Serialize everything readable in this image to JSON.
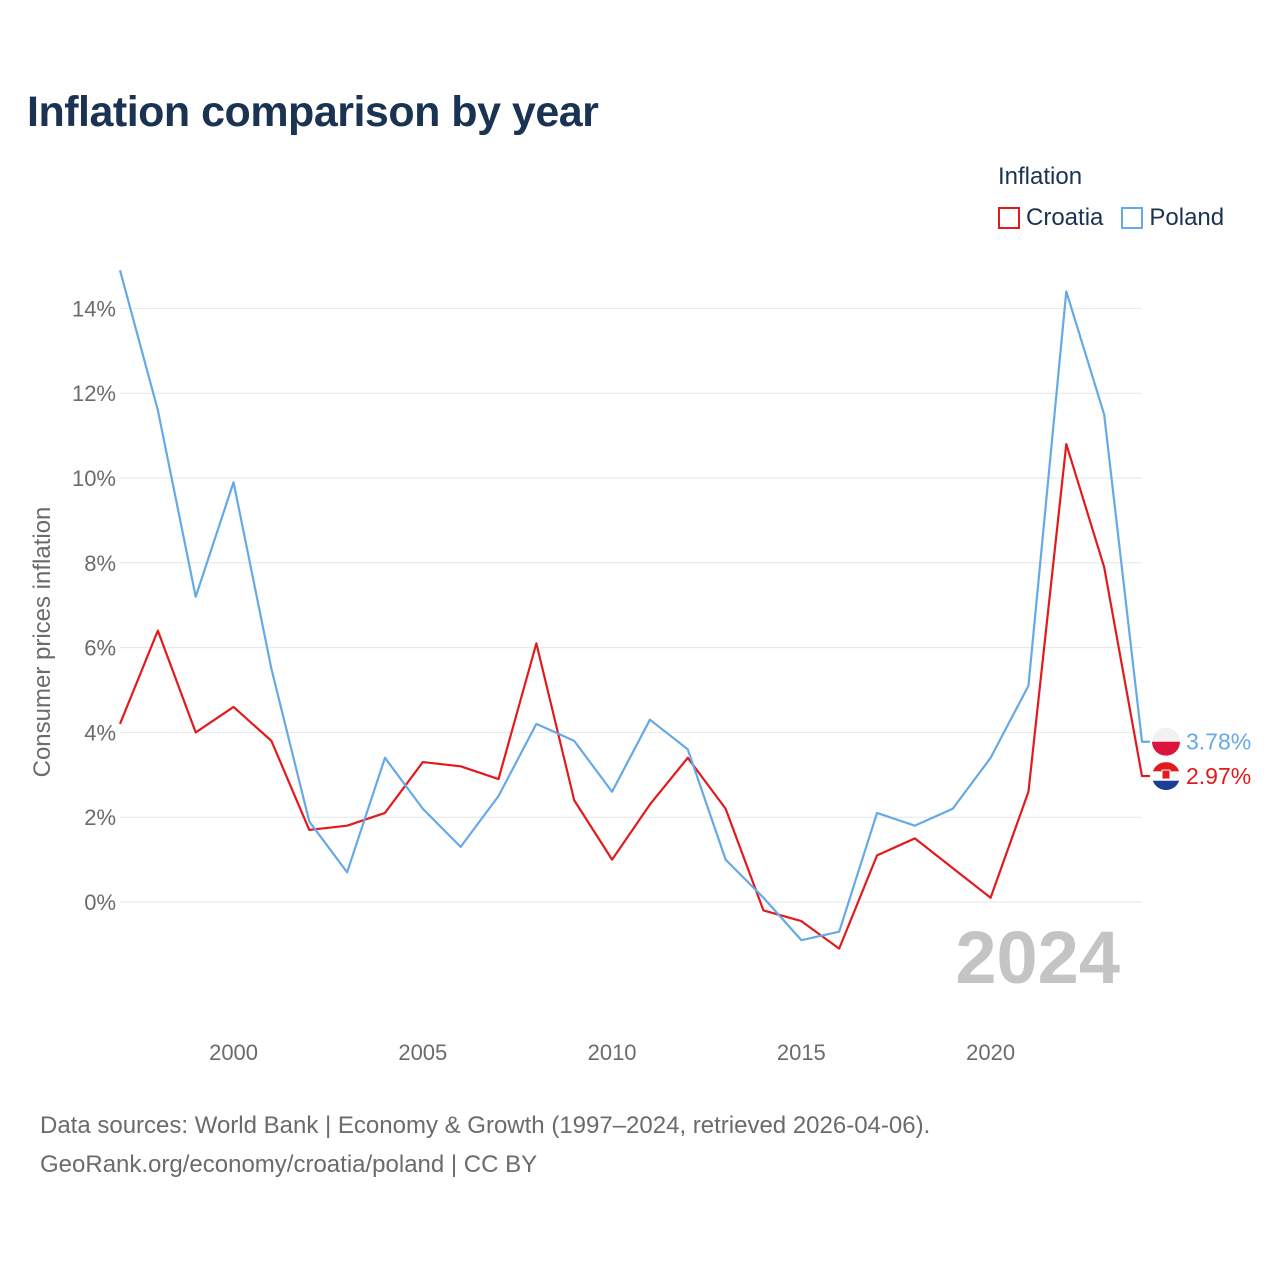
{
  "title": "Inflation comparison by year",
  "legend": {
    "title": "Inflation",
    "items": [
      {
        "label": "Croatia",
        "color": "#e31a1c"
      },
      {
        "label": "Poland",
        "color": "#65a9e6"
      }
    ]
  },
  "footer": {
    "line1": "Data sources: World Bank | Economy & Growth (1997–2024, retrieved 2026-04-06).",
    "line2": "GeoRank.org/economy/croatia/poland | CC BY"
  },
  "chart_data": {
    "type": "line",
    "title": "Inflation comparison by year",
    "xlabel": "",
    "ylabel": "Consumer prices inflation",
    "x": [
      1997,
      1998,
      1999,
      2000,
      2001,
      2002,
      2003,
      2004,
      2005,
      2006,
      2007,
      2008,
      2009,
      2010,
      2011,
      2012,
      2013,
      2014,
      2015,
      2016,
      2017,
      2018,
      2019,
      2020,
      2021,
      2022,
      2023,
      2024
    ],
    "xlim": [
      1997,
      2024
    ],
    "ylim": [
      -2.5,
      15
    ],
    "x_ticks": [
      2000,
      2005,
      2010,
      2015,
      2020
    ],
    "y_ticks": [
      0,
      2,
      4,
      6,
      8,
      10,
      12,
      14
    ],
    "y_tick_labels": [
      "0%",
      "2%",
      "4%",
      "6%",
      "8%",
      "10%",
      "12%",
      "14%"
    ],
    "grid": true,
    "watermark": "2024",
    "series": [
      {
        "name": "Croatia",
        "color": "#e31a1c",
        "end_label": "2.97%",
        "values": [
          4.2,
          6.4,
          4.0,
          4.6,
          3.8,
          1.7,
          1.8,
          2.1,
          3.3,
          3.2,
          2.9,
          6.1,
          2.4,
          1.0,
          2.3,
          3.4,
          2.2,
          -0.2,
          -0.45,
          -1.1,
          1.1,
          1.5,
          0.8,
          0.1,
          2.6,
          10.8,
          7.9,
          2.97
        ]
      },
      {
        "name": "Poland",
        "color": "#65a9e6",
        "end_label": "3.78%",
        "values": [
          14.9,
          11.6,
          7.2,
          9.9,
          5.5,
          1.9,
          0.7,
          3.4,
          2.2,
          1.3,
          2.5,
          4.2,
          3.8,
          2.6,
          4.3,
          3.6,
          1.0,
          0.1,
          -0.9,
          -0.7,
          2.1,
          1.8,
          2.2,
          3.4,
          5.1,
          14.4,
          11.5,
          3.78
        ]
      }
    ]
  }
}
